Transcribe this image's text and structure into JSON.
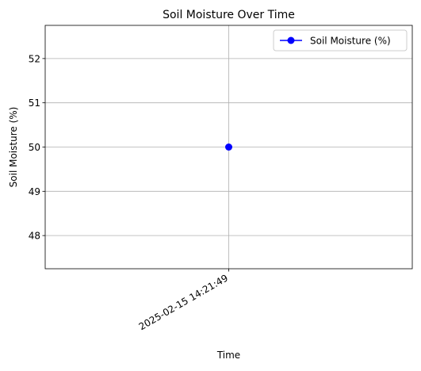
{
  "chart_data": {
    "type": "line",
    "title": "Soil Moisture Over Time",
    "xlabel": "Time",
    "ylabel": "Soil Moisture (%)",
    "x": [
      "2025-02-15 14:21:49"
    ],
    "x_tick_labels": [
      "2025-02-15 14:21:49"
    ],
    "y_ticks": [
      48,
      49,
      50,
      51,
      52
    ],
    "ylim": [
      47.25,
      52.75
    ],
    "grid": true,
    "legend_position": "top-right",
    "series": [
      {
        "name": "Soil Moisture (%)",
        "values": [
          50
        ],
        "color": "#0000ff",
        "marker": "circle"
      }
    ]
  }
}
